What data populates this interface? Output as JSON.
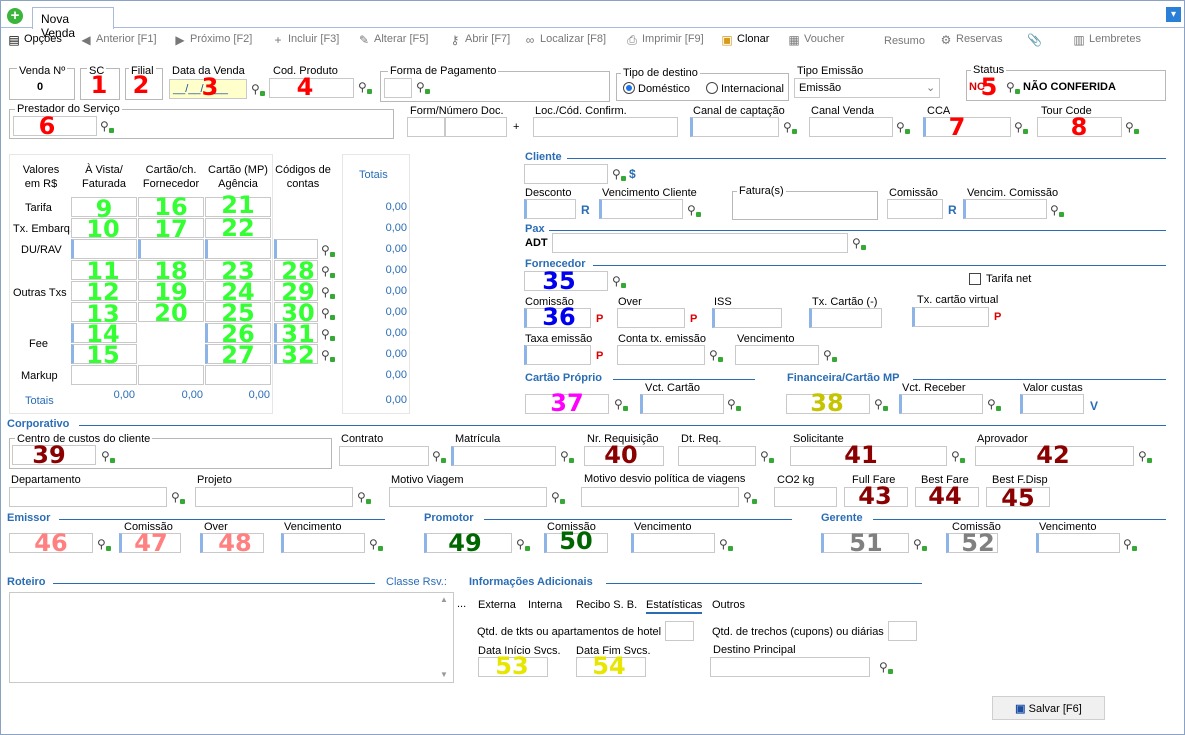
{
  "tab": {
    "label": "Nova Venda"
  },
  "toolbar": {
    "opcoes": "Opções",
    "anterior": "Anterior [F1]",
    "proximo": "Próximo [F2]",
    "incluir": "Incluir [F3]",
    "alterar": "Alterar [F5]",
    "abrir": "Abrir [F7]",
    "localizar": "Localizar [F8]",
    "imprimir": "Imprimir [F9]",
    "clonar": "Clonar",
    "voucher": "Voucher",
    "resumo": "Resumo",
    "reservas": "Reservas",
    "lembretes": "Lembretes"
  },
  "header": {
    "venda_label": "Venda Nº",
    "venda_value": "0",
    "sc_label": "SC",
    "filial_label": "Filial",
    "data_label": "Data da Venda",
    "data_value": "__/__/____",
    "cod_produto_label": "Cod. Produto",
    "forma_pagto_label": "Forma de Pagamento",
    "tipo_destino_label": "Tipo de destino",
    "domestico": "Doméstico",
    "internacional": "Internacional",
    "tipo_emissao_label": "Tipo Emissão",
    "tipo_emissao_value": "Emissão",
    "status_label": "Status",
    "status_code": "NC",
    "status_value": "NÃO CONFERIDA",
    "prestador_label": "Prestador do Serviço",
    "form_doc_label": "Form/Número Doc.",
    "plus": "+",
    "loc_label": "Loc./Cód. Confirm.",
    "canal_captacao_label": "Canal de captação",
    "canal_venda_label": "Canal Venda",
    "cca_label": "CCA",
    "tour_code_label": "Tour Code"
  },
  "values_table": {
    "corner": "Valores em R$",
    "col_avista": "À Vista/ Faturada",
    "col_cartao_forn": "Cartão/ch. Fornecedor",
    "col_cartao_mp": "Cartão (MP) Agência",
    "col_codigos": "Códigos de contas",
    "col_totais": "Totais",
    "rows": [
      "Tarifa",
      "Tx. Embarq.",
      "DU/RAV",
      "Outras Txs",
      "Fee",
      "Markup"
    ],
    "row_totals": [
      "0,00",
      "0,00",
      "0,00",
      "0,00",
      "0,00",
      "0,00",
      "0,00",
      "0,00",
      "0,00",
      "0,00"
    ],
    "totais_label": "Totais",
    "tot_avista": "0,00",
    "tot_forn": "0,00",
    "tot_mp": "0,00",
    "tot_total": "0,00"
  },
  "cliente": {
    "section": "Cliente",
    "dollar": "$",
    "desconto_label": "Desconto",
    "venc_cliente_label": "Vencimento Cliente",
    "faturas_label": "Fatura(s)",
    "comissao_label": "Comissão",
    "venc_comissao_label": "Vencim. Comissão",
    "r": "R"
  },
  "pax": {
    "section": "Pax",
    "adt": "ADT"
  },
  "fornecedor": {
    "section": "Fornecedor",
    "tarifa_net": "Tarifa net",
    "comissao_label": "Comissão",
    "over_label": "Over",
    "iss_label": "ISS",
    "tx_cartao_label": "Tx. Cartão (-)",
    "tx_cartao_virtual_label": "Tx. cartão virtual",
    "taxa_emissao_label": "Taxa emissão",
    "conta_tx_label": "Conta tx. emissão",
    "vencimento_label": "Vencimento",
    "p": "P"
  },
  "cartao_proprio": {
    "section": "Cartão Próprio",
    "vct_label": "Vct. Cartão"
  },
  "financeira": {
    "section": "Financeira/Cartão MP",
    "vct_receber": "Vct. Receber",
    "valor_custas": "Valor custas",
    "v": "V"
  },
  "corporativo": {
    "section": "Corporativo",
    "centro_custos": "Centro de custos do cliente",
    "contrato": "Contrato",
    "matricula": "Matrícula",
    "nr_requisicao": "Nr. Requisição",
    "dt_req": "Dt. Req.",
    "solicitante": "Solicitante",
    "aprovador": "Aprovador",
    "departamento": "Departamento",
    "projeto": "Projeto",
    "motivo_viagem": "Motivo Viagem",
    "motivo_desvio": "Motivo desvio política de viagens",
    "co2": "CO2 kg",
    "full_fare": "Full Fare",
    "best_fare": "Best Fare",
    "best_fdisp": "Best F.Disp"
  },
  "emissor": {
    "section": "Emissor",
    "comissao": "Comissão",
    "over": "Over",
    "vencimento": "Vencimento"
  },
  "promotor": {
    "section": "Promotor",
    "comissao": "Comissão",
    "vencimento": "Vencimento"
  },
  "gerente": {
    "section": "Gerente",
    "comissao": "Comissão",
    "vencimento": "Vencimento"
  },
  "roteiro": {
    "section": "Roteiro",
    "classe": "Classe Rsv.:",
    "ellipsis": "..."
  },
  "info": {
    "section": "Informações Adicionais",
    "tabs": [
      "Externa",
      "Interna",
      "Recibo S. B.",
      "Estatísticas",
      "Outros"
    ],
    "qtd_tkts": "Qtd. de tkts ou apartamentos de hotel",
    "qtd_trechos": "Qtd. de trechos (cupons) ou diárias",
    "data_inicio": "Data Início Svcs.",
    "data_fim": "Data Fim Svcs.",
    "destino": "Destino Principal"
  },
  "salvar": "Salvar [F6]",
  "markers": {
    "n1": "1",
    "n2": "2",
    "n3": "3",
    "n4": "4",
    "n5": "5",
    "n6": "6",
    "n7": "7",
    "n8": "8",
    "n9": "9",
    "n10": "10",
    "n11": "11",
    "n12": "12",
    "n13": "13",
    "n14": "14",
    "n15": "15",
    "n16": "16",
    "n17": "17",
    "n18": "18",
    "n19": "19",
    "n20": "20",
    "n21": "21",
    "n22": "22",
    "n23": "23",
    "n24": "24",
    "n25": "25",
    "n26": "26",
    "n27": "27",
    "n28": "28",
    "n29": "29",
    "n30": "30",
    "n31": "31",
    "n32": "32",
    "n35": "35",
    "n36": "36",
    "n37": "37",
    "n38": "38",
    "n39": "39",
    "n40": "40",
    "n41": "41",
    "n42": "42",
    "n43": "43",
    "n44": "44",
    "n45": "45",
    "n46": "46",
    "n47": "47",
    "n48": "48",
    "n49": "49",
    "n50": "50",
    "n51": "51",
    "n52": "52",
    "n53": "53",
    "n54": "54"
  },
  "colors": {
    "accent": "#2a6db5",
    "marker_red": "#ff0000",
    "marker_green": "#33ff33",
    "marker_blue": "#0000ee"
  }
}
